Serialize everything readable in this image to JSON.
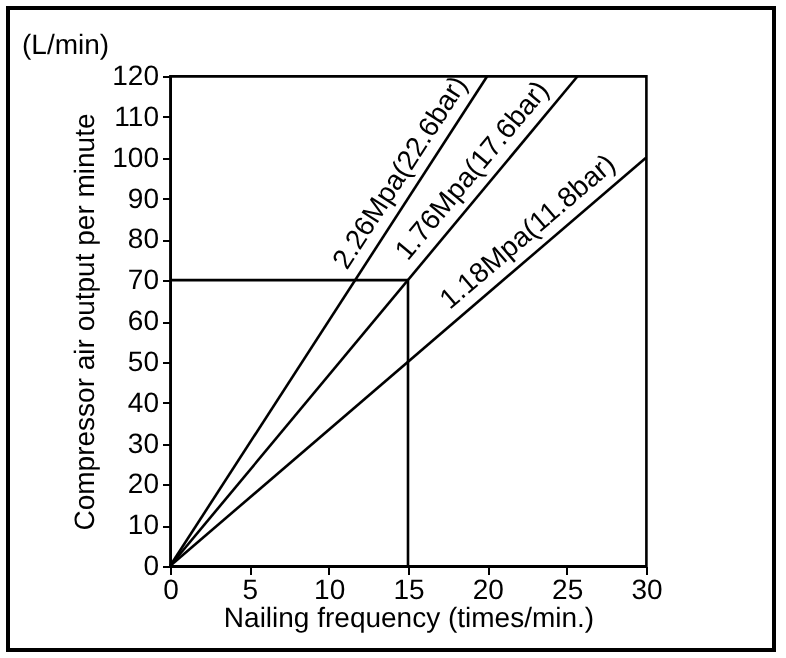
{
  "chart_data": {
    "type": "line",
    "xlabel": "Nailing frequency (times/min.)",
    "ylabel": "Compressor air output per minute",
    "annotations": [
      "(L/min)"
    ],
    "xlim": [
      0,
      30
    ],
    "ylim": [
      0,
      120
    ],
    "xticks": [
      0,
      5,
      10,
      15,
      20,
      25,
      30
    ],
    "yticks": [
      0,
      10,
      20,
      30,
      40,
      50,
      60,
      70,
      80,
      90,
      100,
      110,
      120
    ],
    "grid": false,
    "marker": "none",
    "line_style": "solid",
    "series": [
      {
        "name": "2.26Mpa(22.6bar)",
        "color": "#000000",
        "x": [
          0,
          20
        ],
        "values": [
          0,
          120
        ]
      },
      {
        "name": "1.76Mpa(17.6bar)",
        "color": "#000000",
        "x": [
          0,
          25.7
        ],
        "values": [
          0,
          120
        ]
      },
      {
        "name": "1.18Mpa(11.8bar)",
        "color": "#000000",
        "x": [
          0,
          30
        ],
        "values": [
          0,
          100
        ]
      }
    ],
    "ref_lines": [
      {
        "axis": "y",
        "value": 70,
        "color": "#000000"
      },
      {
        "axis": "x",
        "value": 15,
        "color": "#000000"
      }
    ]
  }
}
